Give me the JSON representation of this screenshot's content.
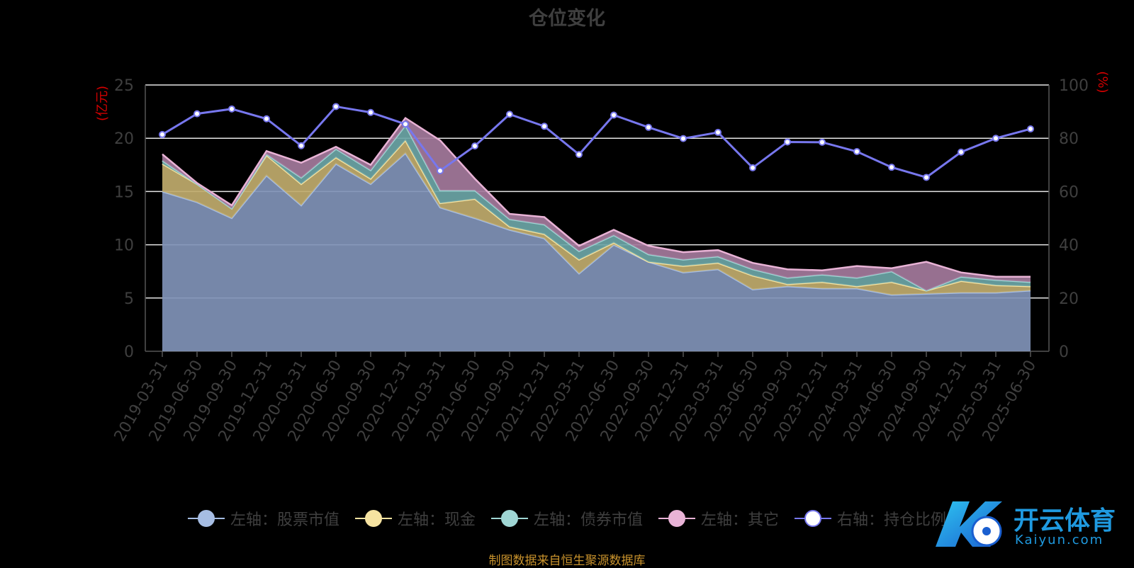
{
  "title": "仓位变化",
  "source_note": "制图数据来自恒生聚源数据库",
  "logo": {
    "text": "开云体育",
    "sub": "Kaiyun.com"
  },
  "legend": [
    {
      "label": "左轴：股票市值",
      "color": "#a6bde3"
    },
    {
      "label": "左轴：现金",
      "color": "#f6e3a1"
    },
    {
      "label": "左轴：债券市值",
      "color": "#9fd6d4"
    },
    {
      "label": "左轴：其它",
      "color": "#e9b3d6"
    },
    {
      "label": "右轴：持仓比例",
      "color": "#7777ee"
    }
  ],
  "chart_data": {
    "type": "area",
    "stacked": true,
    "title": "仓位变化",
    "y_left_label": "(亿元)",
    "y_right_label": "(%)",
    "y_left_range": [
      0,
      25
    ],
    "y_left_ticks": [
      0,
      5,
      10,
      15,
      20,
      25
    ],
    "y_right_range": [
      0,
      100
    ],
    "y_right_ticks": [
      0,
      20,
      40,
      60,
      80,
      100
    ],
    "grid": true,
    "legend_position": "bottom",
    "x_tick_labels": [
      "2019-03-31",
      "2019-06-30",
      "2019-09-30",
      "2019-12-31",
      "2020-03-31",
      "2020-06-30",
      "2020-09-30",
      "2020-12-31",
      "2021-03-31",
      "2021-06-30",
      "2021-09-30",
      "2021-12-31",
      "2022-03-31",
      "2022-06-30",
      "2022-09-30",
      "2022-12-31",
      "2023-03-31",
      "2023-06-30",
      "2023-09-30",
      "2023-12-31",
      "2024-03-31",
      "2024-06-30",
      "2024-09-30",
      "2024-12-31",
      "2025-03-31",
      "2025-06-30"
    ],
    "categories": [
      "2019-03-31",
      "2019-06-30",
      "2019-09-30",
      "2019-12-31",
      "2020-03-31",
      "2020-06-30",
      "2020-09-30",
      "2020-12-31",
      "2021-03-31",
      "2021-06-30",
      "2021-09-30",
      "2021-12-31",
      "2022-03-31",
      "2022-06-30",
      "2022-09-30",
      "2022-12-31",
      "2023-03-31",
      "2023-06-30",
      "2023-09-30",
      "2023-12-31",
      "2024-03-31",
      "2024-06-30",
      "2024-09-30",
      "2024-12-31",
      "2025-03-31",
      "2025-06-30"
    ],
    "series": [
      {
        "name": "左轴：股票市值",
        "axis": "left",
        "color": "#a6bde3",
        "values": [
          15.0,
          14.0,
          12.5,
          16.5,
          13.7,
          17.6,
          15.7,
          18.6,
          13.5,
          12.5,
          11.4,
          10.6,
          7.3,
          10.0,
          8.4,
          7.4,
          7.7,
          5.8,
          6.1,
          5.9,
          5.9,
          5.3,
          5.4,
          5.5,
          5.5,
          5.7
        ]
      },
      {
        "name": "左轴：现金",
        "axis": "left",
        "color": "#f6e3a1",
        "values": [
          2.6,
          1.7,
          0.9,
          1.9,
          2.0,
          0.6,
          0.5,
          1.2,
          0.4,
          1.8,
          0.3,
          0.4,
          1.3,
          0.2,
          0.0,
          0.6,
          0.6,
          1.3,
          0.2,
          0.6,
          0.2,
          1.2,
          0.3,
          1.1,
          0.7,
          0.4
        ]
      },
      {
        "name": "左轴：债券市值",
        "axis": "left",
        "color": "#9fd6d4",
        "values": [
          0.3,
          0.0,
          0.0,
          0.1,
          0.6,
          0.8,
          0.8,
          1.4,
          1.2,
          0.8,
          0.7,
          0.9,
          0.8,
          0.7,
          0.7,
          0.6,
          0.6,
          0.6,
          0.6,
          0.7,
          0.8,
          1.0,
          0.0,
          0.4,
          0.5,
          0.4
        ]
      },
      {
        "name": "左轴：其它",
        "axis": "left",
        "color": "#e9b3d6",
        "values": [
          0.6,
          0.1,
          0.3,
          0.3,
          1.4,
          0.2,
          0.5,
          0.7,
          4.7,
          1.1,
          0.5,
          0.7,
          0.5,
          0.5,
          0.8,
          0.7,
          0.6,
          0.6,
          0.8,
          0.4,
          1.1,
          0.3,
          2.7,
          0.4,
          0.3,
          0.5
        ]
      },
      {
        "name": "右轴：持仓比例",
        "axis": "right",
        "type": "line",
        "color": "#7777ee",
        "values": [
          81.4,
          89.2,
          91.0,
          87.3,
          77.2,
          91.9,
          89.7,
          85.3,
          67.8,
          77.1,
          89.0,
          84.5,
          73.9,
          88.7,
          84.1,
          79.9,
          82.2,
          68.9,
          78.6,
          78.5,
          75.0,
          69.1,
          65.3,
          74.8,
          80.0,
          83.5
        ]
      }
    ]
  }
}
